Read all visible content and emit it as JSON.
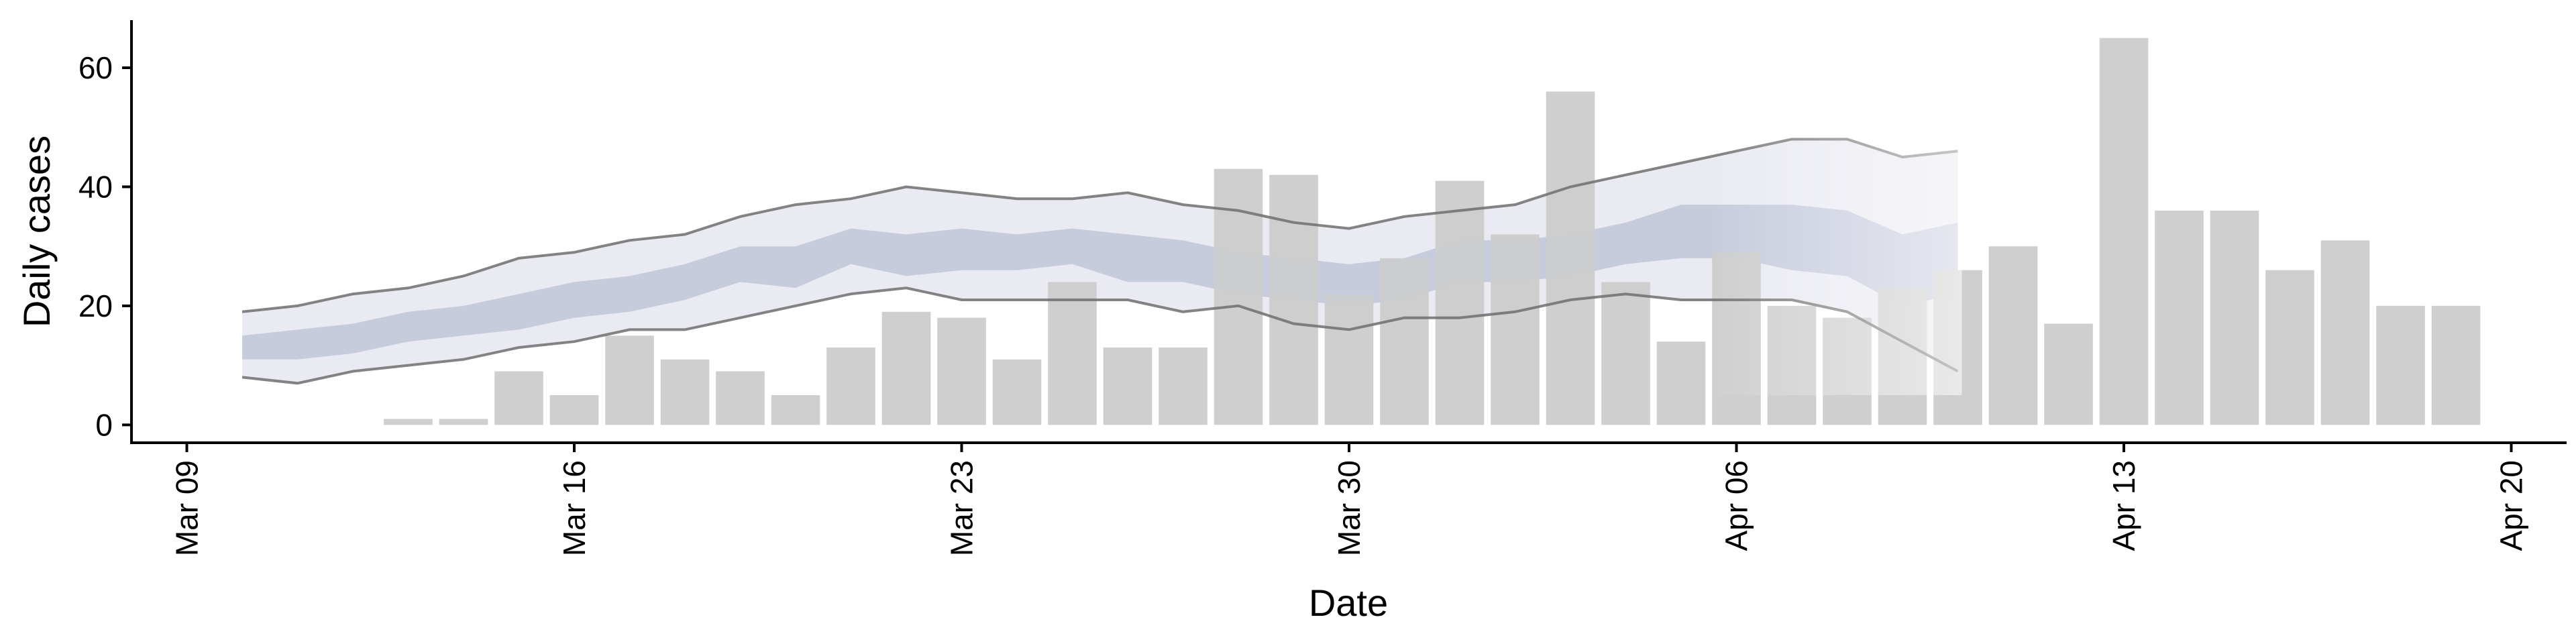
{
  "chart_data": {
    "type": "bar",
    "title": "",
    "xlabel": "Date",
    "ylabel": "Daily cases",
    "ylim": [
      -3,
      68
    ],
    "xlim": [
      "2020-03-08",
      "2020-04-21"
    ],
    "x_ticks": [
      {
        "date": "2020-03-09",
        "label": "Mar 09"
      },
      {
        "date": "2020-03-16",
        "label": "Mar 16"
      },
      {
        "date": "2020-03-23",
        "label": "Mar 23"
      },
      {
        "date": "2020-03-30",
        "label": "Mar 30"
      },
      {
        "date": "2020-04-06",
        "label": "Apr 06"
      },
      {
        "date": "2020-04-13",
        "label": "Apr 13"
      },
      {
        "date": "2020-04-20",
        "label": "Apr 20"
      }
    ],
    "y_ticks": [
      0,
      20,
      40,
      60
    ],
    "grid": false,
    "legend": "none",
    "colors": {
      "bar": "#cccccc",
      "ribbon_outer": "#d9dbe8",
      "ribbon_inner": "#a9b2cc",
      "bound_line": "#6e6e6e"
    },
    "bars": {
      "dates": [
        "2020-03-13",
        "2020-03-14",
        "2020-03-15",
        "2020-03-16",
        "2020-03-17",
        "2020-03-18",
        "2020-03-19",
        "2020-03-20",
        "2020-03-21",
        "2020-03-22",
        "2020-03-23",
        "2020-03-24",
        "2020-03-25",
        "2020-03-26",
        "2020-03-27",
        "2020-03-28",
        "2020-03-29",
        "2020-03-30",
        "2020-03-31",
        "2020-04-01",
        "2020-04-02",
        "2020-04-03",
        "2020-04-04",
        "2020-04-05",
        "2020-04-06",
        "2020-04-07",
        "2020-04-08",
        "2020-04-09",
        "2020-04-10",
        "2020-04-11",
        "2020-04-12",
        "2020-04-13",
        "2020-04-14",
        "2020-04-15",
        "2020-04-16",
        "2020-04-17",
        "2020-04-18",
        "2020-04-19"
      ],
      "values": [
        1,
        1,
        9,
        5,
        15,
        11,
        9,
        5,
        13,
        19,
        18,
        11,
        24,
        13,
        13,
        43,
        42,
        22,
        28,
        41,
        32,
        56,
        24,
        14,
        29,
        20,
        18,
        23,
        26,
        30,
        17,
        65,
        36,
        36,
        26,
        31,
        20,
        20
      ]
    },
    "estimate": {
      "dates": [
        "2020-03-10",
        "2020-03-11",
        "2020-03-12",
        "2020-03-13",
        "2020-03-14",
        "2020-03-15",
        "2020-03-16",
        "2020-03-17",
        "2020-03-18",
        "2020-03-19",
        "2020-03-20",
        "2020-03-21",
        "2020-03-22",
        "2020-03-23",
        "2020-03-24",
        "2020-03-25",
        "2020-03-26",
        "2020-03-27",
        "2020-03-28",
        "2020-03-29",
        "2020-03-30",
        "2020-03-31",
        "2020-04-01",
        "2020-04-02",
        "2020-04-03",
        "2020-04-04",
        "2020-04-05",
        "2020-04-06",
        "2020-04-07",
        "2020-04-08",
        "2020-04-09",
        "2020-04-10"
      ],
      "lower_90": [
        8,
        7,
        9,
        10,
        11,
        13,
        14,
        16,
        16,
        18,
        20,
        22,
        23,
        21,
        21,
        21,
        21,
        19,
        20,
        17,
        16,
        18,
        18,
        19,
        21,
        22,
        21,
        21,
        21,
        19,
        14,
        9
      ],
      "lower_50": [
        11,
        11,
        12,
        14,
        15,
        16,
        18,
        19,
        21,
        24,
        23,
        27,
        25,
        26,
        26,
        27,
        24,
        24,
        22,
        21,
        20,
        21,
        24,
        24,
        25,
        27,
        28,
        28,
        26,
        25,
        20,
        22
      ],
      "upper_50": [
        15,
        16,
        17,
        19,
        20,
        22,
        24,
        25,
        27,
        30,
        30,
        33,
        32,
        33,
        32,
        33,
        32,
        31,
        29,
        28,
        27,
        28,
        31,
        31,
        32,
        34,
        37,
        37,
        37,
        36,
        32,
        34
      ],
      "upper_90": [
        19,
        20,
        22,
        23,
        25,
        28,
        29,
        31,
        32,
        35,
        37,
        38,
        40,
        39,
        38,
        38,
        39,
        37,
        36,
        34,
        33,
        35,
        36,
        37,
        40,
        42,
        44,
        46,
        48,
        48,
        45,
        46
      ]
    }
  }
}
